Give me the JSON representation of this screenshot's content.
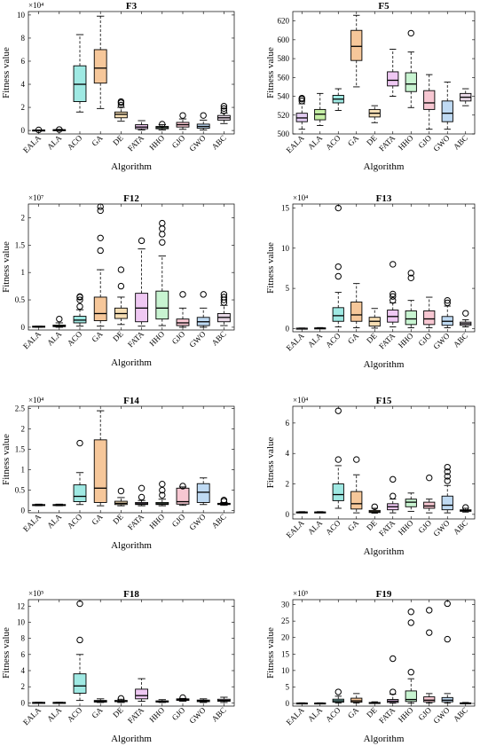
{
  "figure": {
    "subplot_count": 8,
    "algorithms": [
      "EALA",
      "ALA",
      "ACO",
      "GA",
      "DE",
      "FATA",
      "HHO",
      "GJO",
      "GWO",
      "ABC"
    ],
    "colors": [
      "#e3cdf2",
      "#c6f0a6",
      "#9fe9e3",
      "#f6c79a",
      "#f6deb4",
      "#efc8f3",
      "#c8f4d1",
      "#f7c7d2",
      "#bfdaf3",
      "#e7d8e6"
    ]
  },
  "chart_data": [
    {
      "type": "box",
      "title": "F3",
      "xlabel": "Algorithm",
      "ylabel": "Fitness value",
      "exponent_label": "×10⁴",
      "ylim": [
        -0.3,
        10.3
      ],
      "yticks": [
        0,
        2,
        4,
        6,
        8,
        10
      ],
      "scale": 10000,
      "boxes": [
        {
          "name": "EALA",
          "q1": 0.02,
          "median": 0.03,
          "q3": 0.04,
          "wlo": 0.01,
          "whi": 0.05,
          "outliers": [
            0.05
          ]
        },
        {
          "name": "ALA",
          "q1": 0.03,
          "median": 0.05,
          "q3": 0.07,
          "wlo": 0.01,
          "whi": 0.1,
          "outliers": [
            0.08
          ]
        },
        {
          "name": "ACO",
          "q1": 2.5,
          "median": 4.0,
          "q3": 5.6,
          "wlo": 1.6,
          "whi": 8.3,
          "outliers": []
        },
        {
          "name": "GA",
          "q1": 4.1,
          "median": 5.4,
          "q3": 7.0,
          "wlo": 1.9,
          "whi": 9.9,
          "outliers": []
        },
        {
          "name": "DE",
          "q1": 1.1,
          "median": 1.4,
          "q3": 1.6,
          "wlo": 0.8,
          "whi": 2.0,
          "outliers": [
            2.2,
            2.4,
            2.5
          ]
        },
        {
          "name": "FATA",
          "q1": 0.15,
          "median": 0.3,
          "q3": 0.5,
          "wlo": 0.05,
          "whi": 0.85,
          "outliers": []
        },
        {
          "name": "HHO",
          "q1": 0.15,
          "median": 0.25,
          "q3": 0.35,
          "wlo": 0.05,
          "whi": 0.5,
          "outliers": [
            0.55
          ]
        },
        {
          "name": "GJO",
          "q1": 0.3,
          "median": 0.5,
          "q3": 0.7,
          "wlo": 0.1,
          "whi": 1.0,
          "outliers": [
            1.3
          ]
        },
        {
          "name": "GWO",
          "q1": 0.2,
          "median": 0.35,
          "q3": 0.55,
          "wlo": 0.05,
          "whi": 0.9,
          "outliers": [
            1.3
          ]
        },
        {
          "name": "ABC",
          "q1": 0.9,
          "median": 1.1,
          "q3": 1.3,
          "wlo": 0.6,
          "whi": 1.5,
          "outliers": [
            1.7,
            1.9,
            2.1
          ]
        }
      ]
    },
    {
      "type": "box",
      "title": "F5",
      "xlabel": "Algorithm",
      "ylabel": "Fitness value",
      "exponent_label": "",
      "ylim": [
        500,
        630
      ],
      "yticks": [
        500,
        520,
        540,
        560,
        580,
        600,
        620
      ],
      "scale": 1,
      "boxes": [
        {
          "name": "EALA",
          "q1": 513,
          "median": 517,
          "q3": 522,
          "wlo": 505,
          "whi": 532,
          "outliers": [
            535,
            537,
            538
          ]
        },
        {
          "name": "ALA",
          "q1": 515,
          "median": 521,
          "q3": 526,
          "wlo": 509,
          "whi": 543,
          "outliers": []
        },
        {
          "name": "ACO",
          "q1": 533,
          "median": 537,
          "q3": 541,
          "wlo": 525,
          "whi": 548,
          "outliers": []
        },
        {
          "name": "GA",
          "q1": 578,
          "median": 593,
          "q3": 610,
          "wlo": 550,
          "whi": 626,
          "outliers": []
        },
        {
          "name": "DE",
          "q1": 518,
          "median": 522,
          "q3": 526,
          "wlo": 512,
          "whi": 530,
          "outliers": []
        },
        {
          "name": "FATA",
          "q1": 551,
          "median": 557,
          "q3": 566,
          "wlo": 540,
          "whi": 590,
          "outliers": []
        },
        {
          "name": "HHO",
          "q1": 545,
          "median": 553,
          "q3": 565,
          "wlo": 528,
          "whi": 587,
          "outliers": [
            607
          ]
        },
        {
          "name": "GJO",
          "q1": 526,
          "median": 533,
          "q3": 546,
          "wlo": 505,
          "whi": 563,
          "outliers": []
        },
        {
          "name": "GWO",
          "q1": 513,
          "median": 522,
          "q3": 535,
          "wlo": 505,
          "whi": 555,
          "outliers": []
        },
        {
          "name": "ABC",
          "q1": 535,
          "median": 539,
          "q3": 543,
          "wlo": 530,
          "whi": 548,
          "outliers": []
        }
      ]
    },
    {
      "type": "box",
      "title": "F12",
      "xlabel": "Algorithm",
      "ylabel": "Fitness value",
      "exponent_label": "×10⁷",
      "ylim": [
        -0.05,
        2.25
      ],
      "yticks": [
        0,
        0.5,
        1,
        1.5,
        2
      ],
      "scale": 10000000,
      "boxes": [
        {
          "name": "EALA",
          "q1": 0.0,
          "median": 0.01,
          "q3": 0.02,
          "wlo": 0.0,
          "whi": 0.02,
          "outliers": []
        },
        {
          "name": "ALA",
          "q1": 0.01,
          "median": 0.02,
          "q3": 0.04,
          "wlo": 0.0,
          "whi": 0.08,
          "outliers": [
            0.15
          ]
        },
        {
          "name": "ACO",
          "q1": 0.08,
          "median": 0.13,
          "q3": 0.2,
          "wlo": 0.02,
          "whi": 0.32,
          "outliers": [
            0.38,
            0.5,
            0.55,
            0.56
          ]
        },
        {
          "name": "GA",
          "q1": 0.12,
          "median": 0.25,
          "q3": 0.55,
          "wlo": 0.02,
          "whi": 1.05,
          "outliers": [
            1.4,
            1.63,
            2.13,
            2.2
          ]
        },
        {
          "name": "DE",
          "q1": 0.16,
          "median": 0.25,
          "q3": 0.35,
          "wlo": 0.05,
          "whi": 0.55,
          "outliers": [
            0.75,
            1.05
          ]
        },
        {
          "name": "FATA",
          "q1": 0.1,
          "median": 0.35,
          "q3": 0.62,
          "wlo": 0.02,
          "whi": 1.43,
          "outliers": [
            1.58
          ]
        },
        {
          "name": "HHO",
          "q1": 0.15,
          "median": 0.35,
          "q3": 0.66,
          "wlo": 0.03,
          "whi": 1.3,
          "outliers": [
            1.55,
            1.7,
            1.8,
            1.9
          ]
        },
        {
          "name": "GJO",
          "q1": 0.03,
          "median": 0.08,
          "q3": 0.15,
          "wlo": 0.0,
          "whi": 0.35,
          "outliers": [
            0.6
          ]
        },
        {
          "name": "GWO",
          "q1": 0.03,
          "median": 0.1,
          "q3": 0.18,
          "wlo": 0.0,
          "whi": 0.35,
          "outliers": [
            0.6
          ]
        },
        {
          "name": "ABC",
          "q1": 0.1,
          "median": 0.18,
          "q3": 0.25,
          "wlo": 0.03,
          "whi": 0.4,
          "outliers": [
            0.45,
            0.5,
            0.55,
            0.6
          ]
        }
      ]
    },
    {
      "type": "box",
      "title": "F13",
      "xlabel": "Algorithm",
      "ylabel": "Fitness value",
      "exponent_label": "×10⁴",
      "ylim": [
        -0.4,
        15.5
      ],
      "yticks": [
        0,
        5,
        10,
        15
      ],
      "scale": 10000,
      "boxes": [
        {
          "name": "EALA",
          "q1": 0.02,
          "median": 0.03,
          "q3": 0.05,
          "wlo": 0.01,
          "whi": 0.07,
          "outliers": []
        },
        {
          "name": "ALA",
          "q1": 0.03,
          "median": 0.05,
          "q3": 0.08,
          "wlo": 0.01,
          "whi": 0.12,
          "outliers": []
        },
        {
          "name": "ACO",
          "q1": 0.9,
          "median": 1.6,
          "q3": 2.6,
          "wlo": 0.2,
          "whi": 4.5,
          "outliers": [
            6.5,
            7.7,
            15.0
          ]
        },
        {
          "name": "GA",
          "q1": 0.9,
          "median": 1.7,
          "q3": 3.3,
          "wlo": 0.1,
          "whi": 5.6,
          "outliers": []
        },
        {
          "name": "DE",
          "q1": 0.3,
          "median": 0.9,
          "q3": 1.4,
          "wlo": 0.05,
          "whi": 2.5,
          "outliers": []
        },
        {
          "name": "FATA",
          "q1": 0.8,
          "median": 1.5,
          "q3": 2.3,
          "wlo": 0.2,
          "whi": 3.2,
          "outliers": [
            3.5,
            4.0,
            4.3,
            8.0
          ]
        },
        {
          "name": "HHO",
          "q1": 0.5,
          "median": 1.2,
          "q3": 2.2,
          "wlo": 0.1,
          "whi": 3.5,
          "outliers": [
            6.3,
            6.9
          ]
        },
        {
          "name": "GJO",
          "q1": 0.5,
          "median": 1.2,
          "q3": 2.2,
          "wlo": 0.1,
          "whi": 3.9,
          "outliers": []
        },
        {
          "name": "GWO",
          "q1": 0.4,
          "median": 0.9,
          "q3": 1.5,
          "wlo": 0.1,
          "whi": 2.8,
          "outliers": [
            3.2,
            3.5
          ]
        },
        {
          "name": "ABC",
          "q1": 0.4,
          "median": 0.6,
          "q3": 0.8,
          "wlo": 0.2,
          "whi": 1.1,
          "outliers": [
            1.9
          ]
        }
      ]
    },
    {
      "type": "box",
      "title": "F14",
      "xlabel": "Algorithm",
      "ylabel": "Fitness value",
      "exponent_label": "×10⁴",
      "ylim": [
        -0.05,
        2.55
      ],
      "yticks": [
        0,
        0.5,
        1,
        1.5,
        2,
        2.5
      ],
      "scale": 10000,
      "boxes": [
        {
          "name": "EALA",
          "q1": 0.13,
          "median": 0.14,
          "q3": 0.15,
          "wlo": 0.12,
          "whi": 0.16,
          "outliers": []
        },
        {
          "name": "ALA",
          "q1": 0.13,
          "median": 0.14,
          "q3": 0.15,
          "wlo": 0.12,
          "whi": 0.16,
          "outliers": []
        },
        {
          "name": "ACO",
          "q1": 0.22,
          "median": 0.35,
          "q3": 0.63,
          "wlo": 0.15,
          "whi": 0.93,
          "outliers": [
            1.65
          ]
        },
        {
          "name": "GA",
          "q1": 0.2,
          "median": 0.55,
          "q3": 1.73,
          "wlo": 0.12,
          "whi": 2.44,
          "outliers": []
        },
        {
          "name": "DE",
          "q1": 0.15,
          "median": 0.18,
          "q3": 0.23,
          "wlo": 0.12,
          "whi": 0.32,
          "outliers": [
            0.48
          ]
        },
        {
          "name": "FATA",
          "q1": 0.15,
          "median": 0.17,
          "q3": 0.2,
          "wlo": 0.12,
          "whi": 0.25,
          "outliers": [
            0.33,
            0.55
          ]
        },
        {
          "name": "HHO",
          "q1": 0.15,
          "median": 0.17,
          "q3": 0.2,
          "wlo": 0.12,
          "whi": 0.28,
          "outliers": [
            0.38,
            0.5,
            0.65
          ]
        },
        {
          "name": "GJO",
          "q1": 0.16,
          "median": 0.22,
          "q3": 0.55,
          "wlo": 0.13,
          "whi": 0.58,
          "outliers": [
            0.6
          ]
        },
        {
          "name": "GWO",
          "q1": 0.2,
          "median": 0.45,
          "q3": 0.66,
          "wlo": 0.15,
          "whi": 0.8,
          "outliers": []
        },
        {
          "name": "ABC",
          "q1": 0.15,
          "median": 0.16,
          "q3": 0.18,
          "wlo": 0.13,
          "whi": 0.2,
          "outliers": [
            0.23,
            0.26
          ]
        }
      ]
    },
    {
      "type": "box",
      "title": "F15",
      "xlabel": "Algorithm",
      "ylabel": "Fitness value",
      "exponent_label": "×10⁴",
      "ylim": [
        -0.3,
        7.1
      ],
      "yticks": [
        0,
        2,
        4,
        6
      ],
      "scale": 10000,
      "boxes": [
        {
          "name": "EALA",
          "q1": 0.12,
          "median": 0.14,
          "q3": 0.16,
          "wlo": 0.1,
          "whi": 0.18,
          "outliers": []
        },
        {
          "name": "ALA",
          "q1": 0.12,
          "median": 0.14,
          "q3": 0.16,
          "wlo": 0.1,
          "whi": 0.18,
          "outliers": []
        },
        {
          "name": "ACO",
          "q1": 0.9,
          "median": 1.3,
          "q3": 2.0,
          "wlo": 0.4,
          "whi": 3.2,
          "outliers": [
            3.6,
            6.8
          ]
        },
        {
          "name": "GA",
          "q1": 0.35,
          "median": 0.7,
          "q3": 1.5,
          "wlo": 0.1,
          "whi": 2.6,
          "outliers": [
            3.6
          ]
        },
        {
          "name": "DE",
          "q1": 0.12,
          "median": 0.18,
          "q3": 0.26,
          "wlo": 0.08,
          "whi": 0.4,
          "outliers": [
            0.5
          ]
        },
        {
          "name": "FATA",
          "q1": 0.3,
          "median": 0.5,
          "q3": 0.7,
          "wlo": 0.1,
          "whi": 1.0,
          "outliers": [
            1.2,
            2.3
          ]
        },
        {
          "name": "HHO",
          "q1": 0.5,
          "median": 0.8,
          "q3": 1.0,
          "wlo": 0.2,
          "whi": 1.4,
          "outliers": []
        },
        {
          "name": "GJO",
          "q1": 0.4,
          "median": 0.55,
          "q3": 0.8,
          "wlo": 0.1,
          "whi": 1.0,
          "outliers": [
            2.4
          ]
        },
        {
          "name": "GWO",
          "q1": 0.3,
          "median": 0.6,
          "q3": 1.2,
          "wlo": 0.1,
          "whi": 1.9,
          "outliers": [
            2.2,
            2.5,
            2.8,
            3.1
          ]
        },
        {
          "name": "ABC",
          "q1": 0.2,
          "median": 0.25,
          "q3": 0.3,
          "wlo": 0.15,
          "whi": 0.4,
          "outliers": [
            0.45
          ]
        }
      ]
    },
    {
      "type": "box",
      "title": "F18",
      "xlabel": "Algorithm",
      "ylabel": "Fitness value",
      "exponent_label": "×10⁵",
      "ylim": [
        -0.4,
        12.8
      ],
      "yticks": [
        0,
        2,
        4,
        6,
        8,
        10,
        12
      ],
      "scale": 100000,
      "boxes": [
        {
          "name": "EALA",
          "q1": 0.02,
          "median": 0.04,
          "q3": 0.06,
          "wlo": 0.01,
          "whi": 0.08,
          "outliers": []
        },
        {
          "name": "ALA",
          "q1": 0.02,
          "median": 0.04,
          "q3": 0.06,
          "wlo": 0.01,
          "whi": 0.08,
          "outliers": []
        },
        {
          "name": "ACO",
          "q1": 1.2,
          "median": 2.1,
          "q3": 3.6,
          "wlo": 0.3,
          "whi": 6.0,
          "outliers": [
            7.8,
            12.3
          ]
        },
        {
          "name": "GA",
          "q1": 0.1,
          "median": 0.2,
          "q3": 0.3,
          "wlo": 0.05,
          "whi": 0.5,
          "outliers": []
        },
        {
          "name": "DE",
          "q1": 0.15,
          "median": 0.25,
          "q3": 0.3,
          "wlo": 0.05,
          "whi": 0.45,
          "outliers": [
            0.55
          ]
        },
        {
          "name": "FATA",
          "q1": 0.5,
          "median": 0.9,
          "q3": 1.7,
          "wlo": 0.2,
          "whi": 3.0,
          "outliers": []
        },
        {
          "name": "HHO",
          "q1": 0.1,
          "median": 0.15,
          "q3": 0.25,
          "wlo": 0.05,
          "whi": 0.4,
          "outliers": []
        },
        {
          "name": "GJO",
          "q1": 0.3,
          "median": 0.4,
          "q3": 0.5,
          "wlo": 0.2,
          "whi": 0.55,
          "outliers": [
            0.65
          ]
        },
        {
          "name": "GWO",
          "q1": 0.15,
          "median": 0.25,
          "q3": 0.35,
          "wlo": 0.05,
          "whi": 0.5,
          "outliers": []
        },
        {
          "name": "ABC",
          "q1": 0.2,
          "median": 0.3,
          "q3": 0.45,
          "wlo": 0.05,
          "whi": 0.7,
          "outliers": []
        }
      ]
    },
    {
      "type": "box",
      "title": "F19",
      "xlabel": "Algorithm",
      "ylabel": "Fitness value",
      "exponent_label": "×10⁵",
      "ylim": [
        -0.8,
        31.5
      ],
      "yticks": [
        0,
        5,
        10,
        15,
        20,
        25,
        30
      ],
      "scale": 100000,
      "boxes": [
        {
          "name": "EALA",
          "q1": 0.05,
          "median": 0.1,
          "q3": 0.15,
          "wlo": 0.02,
          "whi": 0.2,
          "outliers": []
        },
        {
          "name": "ALA",
          "q1": 0.05,
          "median": 0.1,
          "q3": 0.15,
          "wlo": 0.02,
          "whi": 0.2,
          "outliers": []
        },
        {
          "name": "ACO",
          "q1": 0.4,
          "median": 0.8,
          "q3": 1.3,
          "wlo": 0.1,
          "whi": 2.2,
          "outliers": [
            3.5
          ]
        },
        {
          "name": "GA",
          "q1": 0.4,
          "median": 0.8,
          "q3": 1.6,
          "wlo": 0.1,
          "whi": 3.0,
          "outliers": []
        },
        {
          "name": "DE",
          "q1": 0.1,
          "median": 0.2,
          "q3": 0.3,
          "wlo": 0.05,
          "whi": 0.5,
          "outliers": []
        },
        {
          "name": "FATA",
          "q1": 0.3,
          "median": 0.7,
          "q3": 1.2,
          "wlo": 0.1,
          "whi": 2.8,
          "outliers": [
            3.5,
            13.6
          ]
        },
        {
          "name": "HHO",
          "q1": 0.6,
          "median": 1.2,
          "q3": 3.8,
          "wlo": 0.1,
          "whi": 7.5,
          "outliers": [
            9.5,
            24.5,
            27.8
          ]
        },
        {
          "name": "GJO",
          "q1": 0.5,
          "median": 1.0,
          "q3": 2.0,
          "wlo": 0.1,
          "whi": 3.0,
          "outliers": [
            21.5,
            28.3
          ]
        },
        {
          "name": "GWO",
          "q1": 0.5,
          "median": 1.0,
          "q3": 1.8,
          "wlo": 0.1,
          "whi": 3.0,
          "outliers": [
            19.5,
            30.3
          ]
        },
        {
          "name": "ABC",
          "q1": 0.05,
          "median": 0.1,
          "q3": 0.2,
          "wlo": 0.02,
          "whi": 0.3,
          "outliers": []
        }
      ]
    }
  ]
}
